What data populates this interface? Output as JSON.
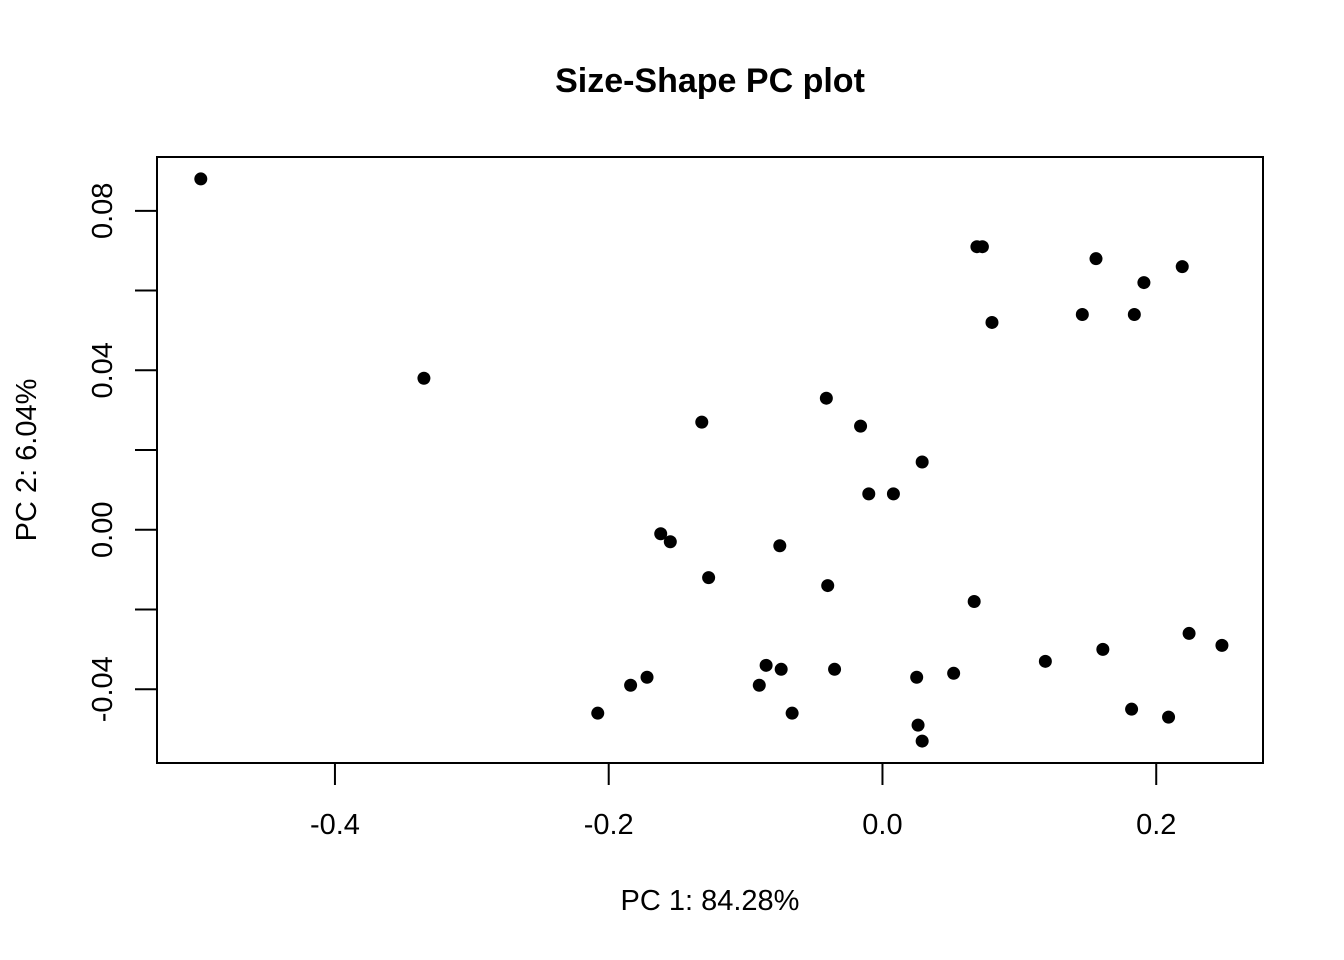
{
  "chart_data": {
    "type": "scatter",
    "title": "Size-Shape PC plot",
    "xlabel": "PC 1: 84.28%",
    "ylabel": "PC 2: 6.04%",
    "xlim": [
      -0.53,
      0.278
    ],
    "ylim": [
      -0.0585,
      0.0935
    ],
    "xticks": [
      -0.4,
      -0.2,
      0.0,
      0.2
    ],
    "xtick_labels": [
      "-0.4",
      "-0.2",
      "0.0",
      "0.2"
    ],
    "yticks": [
      -0.04,
      0.0,
      0.04,
      0.08
    ],
    "ytick_labels": [
      "-0.04",
      "0.00",
      "0.04",
      "0.08"
    ],
    "y_minor_ticks": [
      -0.02,
      0.02,
      0.06
    ],
    "grid": false,
    "legend": "none",
    "marker_color": "#000000",
    "points": [
      {
        "x": -0.498,
        "y": 0.088
      },
      {
        "x": -0.335,
        "y": 0.038
      },
      {
        "x": -0.132,
        "y": 0.027
      },
      {
        "x": -0.162,
        "y": -0.001
      },
      {
        "x": -0.155,
        "y": -0.003
      },
      {
        "x": -0.075,
        "y": -0.004
      },
      {
        "x": -0.127,
        "y": -0.012
      },
      {
        "x": -0.041,
        "y": 0.033
      },
      {
        "x": -0.016,
        "y": 0.026
      },
      {
        "x": 0.029,
        "y": 0.017
      },
      {
        "x": -0.01,
        "y": 0.009
      },
      {
        "x": 0.008,
        "y": 0.009
      },
      {
        "x": -0.04,
        "y": -0.014
      },
      {
        "x": 0.067,
        "y": -0.018
      },
      {
        "x": 0.069,
        "y": 0.071
      },
      {
        "x": 0.073,
        "y": 0.071
      },
      {
        "x": 0.156,
        "y": 0.068
      },
      {
        "x": 0.191,
        "y": 0.062
      },
      {
        "x": 0.219,
        "y": 0.066
      },
      {
        "x": 0.08,
        "y": 0.052
      },
      {
        "x": 0.146,
        "y": 0.054
      },
      {
        "x": 0.184,
        "y": 0.054
      },
      {
        "x": -0.208,
        "y": -0.046
      },
      {
        "x": -0.184,
        "y": -0.039
      },
      {
        "x": -0.172,
        "y": -0.037
      },
      {
        "x": -0.09,
        "y": -0.039
      },
      {
        "x": -0.085,
        "y": -0.034
      },
      {
        "x": -0.074,
        "y": -0.035
      },
      {
        "x": -0.066,
        "y": -0.046
      },
      {
        "x": -0.035,
        "y": -0.035
      },
      {
        "x": 0.025,
        "y": -0.037
      },
      {
        "x": 0.052,
        "y": -0.036
      },
      {
        "x": 0.026,
        "y": -0.049
      },
      {
        "x": 0.029,
        "y": -0.053
      },
      {
        "x": 0.119,
        "y": -0.033
      },
      {
        "x": 0.161,
        "y": -0.03
      },
      {
        "x": 0.224,
        "y": -0.026
      },
      {
        "x": 0.248,
        "y": -0.029
      },
      {
        "x": 0.182,
        "y": -0.045
      },
      {
        "x": 0.209,
        "y": -0.047
      }
    ]
  }
}
